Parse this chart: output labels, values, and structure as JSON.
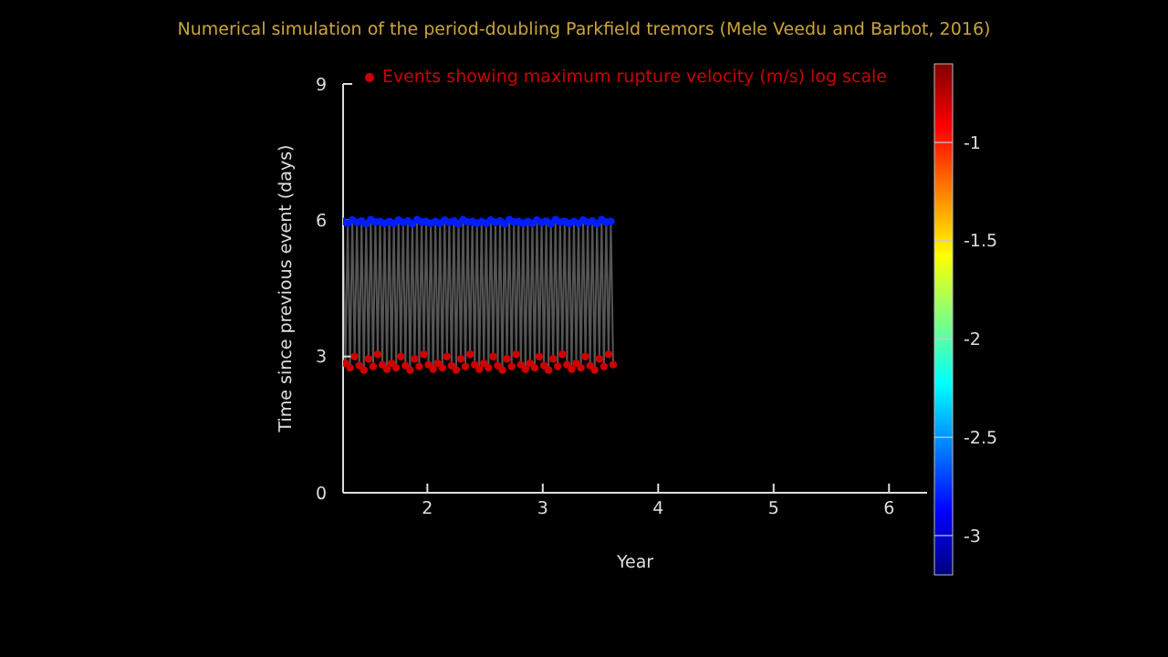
{
  "chart_data": {
    "type": "scatter",
    "title": "Numerical simulation of the period-doubling Parkfield tremors (Mele Veedu and Barbot, 2016)",
    "xlabel": "Year",
    "ylabel": "Time since previous event (days)",
    "xlim": [
      1.27,
      6.33
    ],
    "xticks": [
      2,
      3,
      4,
      5,
      6
    ],
    "ylim": [
      0,
      9
    ],
    "yticks": [
      0,
      3,
      6,
      9
    ],
    "clim": [
      -3.2,
      -0.6
    ],
    "cticks": [
      -3,
      -2.5,
      -2,
      -1.5,
      -1
    ],
    "legend": "top right",
    "grid": false,
    "x": [
      1.27,
      1.29,
      1.31,
      1.33,
      1.35,
      1.37,
      1.39,
      1.41,
      1.43,
      1.45,
      1.47,
      1.49,
      1.51,
      1.53,
      1.55,
      1.57,
      1.59,
      1.61,
      1.63,
      1.65,
      1.67,
      1.69,
      1.71,
      1.73,
      1.75,
      1.77,
      1.79,
      1.81,
      1.83,
      1.85,
      1.87,
      1.89,
      1.91,
      1.93,
      1.95,
      1.97,
      1.99,
      2.01,
      2.03,
      2.05,
      2.07,
      2.09,
      2.11,
      2.13,
      2.15,
      2.17,
      2.19,
      2.21,
      2.23,
      2.25,
      2.27,
      2.29,
      2.31,
      2.33,
      2.35,
      2.37,
      2.39,
      2.41,
      2.43,
      2.45,
      2.47,
      2.49,
      2.51,
      2.53,
      2.55,
      2.57,
      2.59,
      2.61,
      2.63,
      2.65,
      2.67,
      2.69,
      2.71,
      2.73,
      2.75,
      2.77,
      2.79,
      2.81,
      2.83,
      2.85,
      2.87,
      2.89,
      2.91,
      2.93,
      2.95,
      2.97,
      2.99,
      3.01,
      3.03,
      3.05,
      3.07,
      3.09,
      3.11,
      3.13,
      3.15,
      3.17,
      3.19,
      3.21,
      3.23,
      3.25,
      3.27,
      3.29,
      3.31,
      3.33,
      3.35,
      3.37,
      3.39,
      3.41,
      3.43,
      3.45,
      3.47,
      3.49,
      3.51,
      3.53,
      3.55,
      3.57,
      3.59,
      3.61
    ],
    "series": [
      {
        "type": "line",
        "color": "#555555",
        "values": [
          5.97,
          2.85,
          5.93,
          2.75,
          6.0,
          3.0,
          5.95,
          2.8,
          5.98,
          2.7,
          5.92,
          2.95,
          6.01,
          2.78,
          5.96,
          3.05,
          5.97,
          2.82,
          5.93,
          2.72,
          5.97,
          2.85,
          5.93,
          2.75,
          6.0,
          3.0,
          5.95,
          2.8,
          5.98,
          2.7,
          5.92,
          2.95,
          6.01,
          2.78,
          5.96,
          3.05,
          5.97,
          2.82,
          5.93,
          2.72,
          5.97,
          2.85,
          5.93,
          2.75,
          6.0,
          3.0,
          5.95,
          2.8,
          5.98,
          2.7,
          5.92,
          2.95,
          6.01,
          2.78,
          5.96,
          3.05,
          5.97,
          2.82,
          5.93,
          2.72,
          5.97,
          2.85,
          5.93,
          2.75,
          6.0,
          3.0,
          5.95,
          2.8,
          5.98,
          2.7,
          5.92,
          2.95,
          6.01,
          2.78,
          5.96,
          3.05,
          5.97,
          2.82,
          5.93,
          2.72,
          5.97,
          2.85,
          5.93,
          2.75,
          6.0,
          3.0,
          5.95,
          2.8,
          5.98,
          2.7,
          5.92,
          2.95,
          6.01,
          2.78,
          5.96,
          3.05,
          5.97,
          2.82,
          5.93,
          2.72,
          5.97,
          2.85,
          5.93,
          2.75,
          6.0,
          3.0,
          5.95,
          2.8,
          5.98,
          2.7,
          5.92,
          2.95,
          6.01,
          2.78,
          5.96,
          3.05,
          5.97,
          2.82
        ]
      },
      {
        "x": [
          1.27,
          1.31,
          1.35,
          1.39,
          1.43,
          1.47,
          1.51,
          1.55,
          1.59,
          1.63,
          1.67,
          1.71,
          1.75,
          1.79,
          1.83,
          1.87,
          1.91,
          1.95,
          1.99,
          2.03,
          2.07,
          2.11,
          2.15,
          2.19,
          2.23,
          2.27,
          2.31,
          2.35,
          2.39,
          2.43,
          2.47,
          2.51,
          2.55,
          2.59,
          2.63,
          2.67,
          2.71,
          2.75,
          2.79,
          2.83,
          2.87,
          2.91,
          2.95,
          2.99,
          3.03,
          3.07,
          3.11,
          3.15,
          3.19,
          3.23,
          3.27,
          3.31,
          3.35,
          3.39,
          3.43,
          3.47,
          3.51,
          3.55,
          3.59
        ],
        "values": [
          5.97,
          5.93,
          6.0,
          5.95,
          5.98,
          5.92,
          6.01,
          5.96,
          5.97,
          5.93,
          5.97,
          5.93,
          6.0,
          5.95,
          5.98,
          5.92,
          6.01,
          5.96,
          5.97,
          5.93,
          5.97,
          5.93,
          6.0,
          5.95,
          5.98,
          5.92,
          6.01,
          5.96,
          5.97,
          5.93,
          5.97,
          5.93,
          6.0,
          5.95,
          5.98,
          5.92,
          6.01,
          5.96,
          5.97,
          5.93,
          5.97,
          5.93,
          6.0,
          5.95,
          5.98,
          5.92,
          6.01,
          5.96,
          5.97,
          5.93,
          5.97,
          5.93,
          6.0,
          5.95,
          5.98,
          5.92,
          6.01,
          5.96,
          5.97
        ],
        "cvalues": [
          -2.8,
          -2.8,
          -2.8,
          -2.8,
          -2.8,
          -2.8,
          -2.8,
          -2.8,
          -2.8,
          -2.8,
          -2.8,
          -2.8,
          -2.8,
          -2.8,
          -2.8,
          -2.8,
          -2.8,
          -2.8,
          -2.8,
          -2.8,
          -2.8,
          -2.8,
          -2.8,
          -2.8,
          -2.8,
          -2.8,
          -2.8,
          -2.8,
          -2.8,
          -2.8,
          -2.8,
          -2.8,
          -2.8,
          -2.8,
          -2.8,
          -2.8,
          -2.8,
          -2.8,
          -2.8,
          -2.8,
          -2.8,
          -2.8,
          -2.8,
          -2.8,
          -2.8,
          -2.8,
          -2.8,
          -2.8,
          -2.8,
          -2.8,
          -2.8,
          -2.8,
          -2.8,
          -2.8,
          -2.8,
          -2.8,
          -2.8,
          -2.8,
          -2.8
        ]
      },
      {
        "name": "Events showing maximum rupture velocity (m/s) log scale",
        "x": [
          1.29,
          1.33,
          1.37,
          1.41,
          1.45,
          1.49,
          1.53,
          1.57,
          1.61,
          1.65,
          1.69,
          1.73,
          1.77,
          1.81,
          1.85,
          1.89,
          1.93,
          1.97,
          2.01,
          2.05,
          2.09,
          2.13,
          2.17,
          2.21,
          2.25,
          2.29,
          2.33,
          2.37,
          2.41,
          2.45,
          2.49,
          2.53,
          2.57,
          2.61,
          2.65,
          2.69,
          2.73,
          2.77,
          2.81,
          2.85,
          2.89,
          2.93,
          2.97,
          3.01,
          3.05,
          3.09,
          3.13,
          3.17,
          3.21,
          3.25,
          3.29,
          3.33,
          3.37,
          3.41,
          3.45,
          3.49,
          3.53,
          3.57,
          3.61
        ],
        "values": [
          2.85,
          2.75,
          3.0,
          2.8,
          2.7,
          2.95,
          2.78,
          3.05,
          2.82,
          2.72,
          2.85,
          2.75,
          3.0,
          2.8,
          2.7,
          2.95,
          2.78,
          3.05,
          2.82,
          2.72,
          2.85,
          2.75,
          3.0,
          2.8,
          2.7,
          2.95,
          2.78,
          3.05,
          2.82,
          2.72,
          2.85,
          2.75,
          3.0,
          2.8,
          2.7,
          2.95,
          2.78,
          3.05,
          2.82,
          2.72,
          2.85,
          2.75,
          3.0,
          2.8,
          2.7,
          2.95,
          2.78,
          3.05,
          2.82,
          2.72,
          2.85,
          2.75,
          3.0,
          2.8,
          2.7,
          2.95,
          2.78,
          3.05,
          2.82
        ],
        "cvalues": [
          -0.8,
          -0.8,
          -0.8,
          -0.8,
          -0.8,
          -0.8,
          -0.8,
          -0.8,
          -0.8,
          -0.8,
          -0.8,
          -0.8,
          -0.8,
          -0.8,
          -0.8,
          -0.8,
          -0.8,
          -0.8,
          -0.8,
          -0.8,
          -0.8,
          -0.8,
          -0.8,
          -0.8,
          -0.8,
          -0.8,
          -0.8,
          -0.8,
          -0.8,
          -0.8,
          -0.8,
          -0.8,
          -0.8,
          -0.8,
          -0.8,
          -0.8,
          -0.8,
          -0.8,
          -0.8,
          -0.8,
          -0.8,
          -0.8,
          -0.8,
          -0.8,
          -0.8,
          -0.8,
          -0.8,
          -0.8,
          -0.8,
          -0.8,
          -0.8,
          -0.8,
          -0.8,
          -0.8,
          -0.8,
          -0.8,
          -0.8,
          -0.8,
          -0.8
        ]
      }
    ]
  }
}
